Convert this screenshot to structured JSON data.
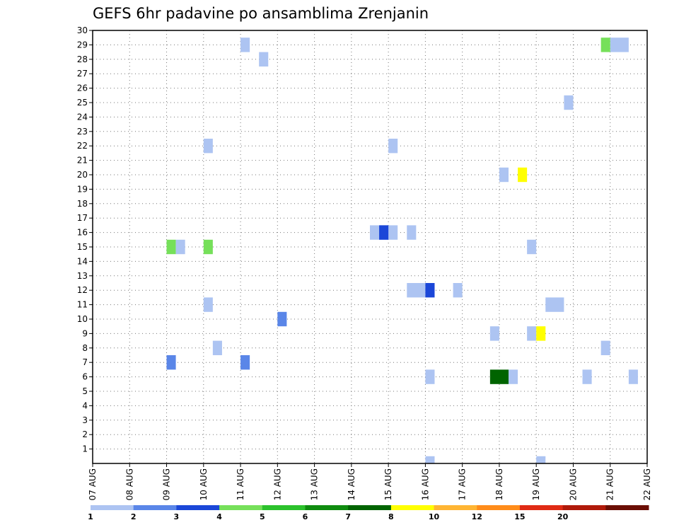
{
  "chart_data": {
    "type": "heatmap",
    "title": "GEFS 6hr padavine po ansamblima Zrenjanin",
    "x_ticks": [
      "07 AUG",
      "08 AUG",
      "09 AUG",
      "10 AUG",
      "11 AUG",
      "12 AUG",
      "13 AUG",
      "14 AUG",
      "15 AUG",
      "16 AUG",
      "17 AUG",
      "18 AUG",
      "19 AUG",
      "20 AUG",
      "21 AUG",
      "22 AUG"
    ],
    "y_ticks": [
      "1",
      "2",
      "3",
      "4",
      "5",
      "6",
      "7",
      "8",
      "9",
      "10",
      "11",
      "12",
      "13",
      "14",
      "15",
      "16",
      "17",
      "18",
      "19",
      "20",
      "21",
      "22",
      "23",
      "24",
      "25",
      "26",
      "27",
      "28",
      "29",
      "30"
    ],
    "xlim": [
      0,
      15
    ],
    "ylim": [
      0,
      30
    ],
    "grid": true,
    "legend_placement": "bottom",
    "legend": {
      "labels": [
        "1",
        "2",
        "3",
        "4",
        "5",
        "6",
        "7",
        "8",
        "10",
        "12",
        "15",
        "20"
      ],
      "colors": [
        "#adc4f2",
        "#5a86e8",
        "#1b47d8",
        "#76e05a",
        "#2cc22c",
        "#0f8c0f",
        "#006400",
        "#ffff00",
        "#ffb533",
        "#ff8c1a",
        "#e02b14",
        "#b01a0a",
        "#6b0e04"
      ]
    },
    "cells": [
      {
        "x": 4.0,
        "w": 0.25,
        "y": 29,
        "color": "#adc4f2"
      },
      {
        "x": 14.0,
        "w": 0.5,
        "y": 29,
        "color": "#adc4f2"
      },
      {
        "x": 13.75,
        "w": 0.25,
        "y": 29,
        "color": "#76e05a"
      },
      {
        "x": 4.5,
        "w": 0.25,
        "y": 28,
        "color": "#adc4f2"
      },
      {
        "x": 12.75,
        "w": 0.25,
        "y": 25,
        "color": "#adc4f2"
      },
      {
        "x": 3.0,
        "w": 0.25,
        "y": 22,
        "color": "#adc4f2"
      },
      {
        "x": 8.0,
        "w": 0.25,
        "y": 22,
        "color": "#adc4f2"
      },
      {
        "x": 11.0,
        "w": 0.25,
        "y": 20,
        "color": "#adc4f2"
      },
      {
        "x": 11.5,
        "w": 0.25,
        "y": 20,
        "color": "#ffff00"
      },
      {
        "x": 7.5,
        "w": 0.75,
        "y": 16,
        "color": "#adc4f2"
      },
      {
        "x": 7.75,
        "w": 0.25,
        "y": 16,
        "color": "#1b47d8"
      },
      {
        "x": 8.5,
        "w": 0.25,
        "y": 16,
        "color": "#adc4f2"
      },
      {
        "x": 2.0,
        "w": 0.25,
        "y": 15,
        "color": "#76e05a"
      },
      {
        "x": 2.25,
        "w": 0.25,
        "y": 15,
        "color": "#adc4f2"
      },
      {
        "x": 3.0,
        "w": 0.25,
        "y": 15,
        "color": "#76e05a"
      },
      {
        "x": 11.75,
        "w": 0.25,
        "y": 15,
        "color": "#adc4f2"
      },
      {
        "x": 8.5,
        "w": 0.5,
        "y": 12,
        "color": "#adc4f2"
      },
      {
        "x": 9.0,
        "w": 0.25,
        "y": 12,
        "color": "#1b47d8"
      },
      {
        "x": 9.75,
        "w": 0.25,
        "y": 12,
        "color": "#adc4f2"
      },
      {
        "x": 3.0,
        "w": 0.25,
        "y": 11,
        "color": "#adc4f2"
      },
      {
        "x": 12.25,
        "w": 0.5,
        "y": 11,
        "color": "#adc4f2"
      },
      {
        "x": 5.0,
        "w": 0.25,
        "y": 10,
        "color": "#5a86e8"
      },
      {
        "x": 10.75,
        "w": 0.25,
        "y": 9,
        "color": "#adc4f2"
      },
      {
        "x": 11.75,
        "w": 0.25,
        "y": 9,
        "color": "#adc4f2"
      },
      {
        "x": 12.0,
        "w": 0.25,
        "y": 9,
        "color": "#ffff00"
      },
      {
        "x": 3.25,
        "w": 0.25,
        "y": 8,
        "color": "#adc4f2"
      },
      {
        "x": 13.75,
        "w": 0.25,
        "y": 8,
        "color": "#adc4f2"
      },
      {
        "x": 2.0,
        "w": 0.25,
        "y": 7,
        "color": "#5a86e8"
      },
      {
        "x": 4.0,
        "w": 0.25,
        "y": 7,
        "color": "#5a86e8"
      },
      {
        "x": 9.0,
        "w": 0.25,
        "y": 6,
        "color": "#adc4f2"
      },
      {
        "x": 10.75,
        "w": 0.5,
        "y": 6,
        "color": "#006400"
      },
      {
        "x": 11.25,
        "w": 0.25,
        "y": 6,
        "color": "#adc4f2"
      },
      {
        "x": 13.25,
        "w": 0.25,
        "y": 6,
        "color": "#adc4f2"
      },
      {
        "x": 14.5,
        "w": 0.25,
        "y": 6,
        "color": "#adc4f2"
      },
      {
        "x": 9.0,
        "w": 0.25,
        "y": 0,
        "color": "#adc4f2"
      },
      {
        "x": 12.0,
        "w": 0.25,
        "y": 0,
        "color": "#adc4f2"
      }
    ]
  }
}
